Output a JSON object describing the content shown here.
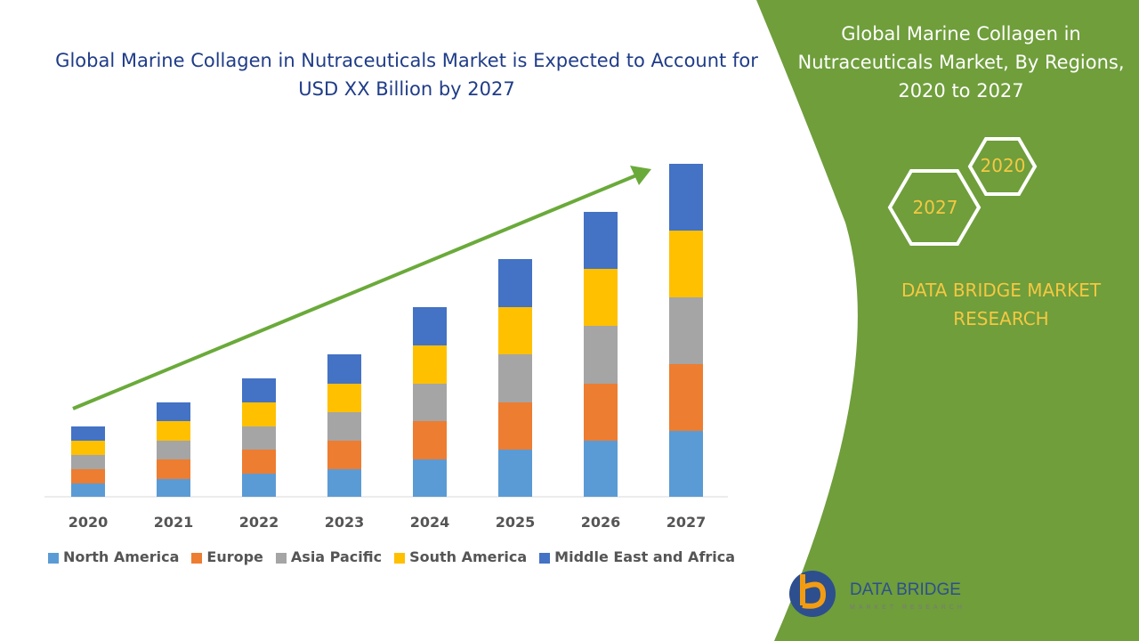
{
  "chart_data": {
    "type": "stacked-bar",
    "title": "Global Marine Collagen in Nutraceuticals Market is Expected to Account for USD XX Billion by 2027",
    "categories": [
      "2020",
      "2021",
      "2022",
      "2023",
      "2024",
      "2025",
      "2026",
      "2027"
    ],
    "series": [
      {
        "name": "North America",
        "color": "#5b9bd5",
        "values": [
          15,
          20,
          26,
          31,
          42,
          53,
          63,
          74
        ]
      },
      {
        "name": "Europe",
        "color": "#ed7d31",
        "values": [
          16,
          22,
          27,
          32,
          43,
          53,
          64,
          75
        ]
      },
      {
        "name": "Asia Pacific",
        "color": "#a5a5a5",
        "values": [
          16,
          21,
          26,
          32,
          42,
          54,
          65,
          75
        ]
      },
      {
        "name": "South America",
        "color": "#ffc000",
        "values": [
          16,
          22,
          27,
          32,
          43,
          53,
          64,
          75
        ]
      },
      {
        "name": "Middle East and Africa",
        "color": "#4472c4",
        "values": [
          16,
          21,
          27,
          33,
          43,
          54,
          64,
          75
        ]
      }
    ],
    "ylim": [
      0,
      400
    ],
    "legend": "bottom"
  },
  "panel": {
    "title": "Global Marine Collagen in Nutraceuticals Market, By Regions, 2020 to 2027",
    "hex_labels": [
      "2020",
      "2027"
    ],
    "brand": "DATA BRIDGE MARKET RESEARCH"
  },
  "logo": {
    "name": "DATA BRIDGE",
    "tagline": "MARKET RESEARCH"
  }
}
